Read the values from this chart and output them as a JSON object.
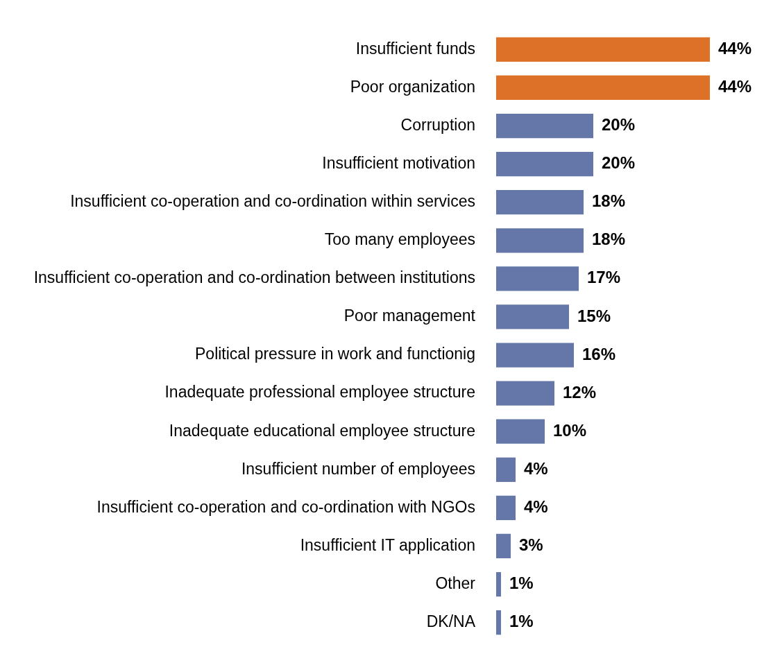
{
  "chart_data": {
    "type": "bar",
    "orientation": "horizontal",
    "tick_labels": "y",
    "categories": [
      "Insufficient funds",
      "Poor organization",
      "Corruption",
      "Insufficient motivation",
      "Insufficient co-operation and co-ordination within services",
      "Too many employees",
      "Insufficient co-operation and co-ordination between institutions",
      "Poor management",
      "Political pressure in work and functionig",
      "Inadequate professional employee structure",
      "Inadequate educational employee structure",
      "Insufficient number of employees",
      "Insufficient co-operation and co-ordination with NGOs",
      "Insufficient IT application",
      "Other",
      "DK/NA"
    ],
    "values": [
      44,
      44,
      20,
      20,
      18,
      18,
      17,
      15,
      16,
      12,
      10,
      4,
      4,
      3,
      1,
      1
    ],
    "value_labels": [
      "44%",
      "44%",
      "20%",
      "20%",
      "18%",
      "18%",
      "17%",
      "15%",
      "16%",
      "12%",
      "10%",
      "4%",
      "4%",
      "3%",
      "1%",
      "1%"
    ],
    "colors": [
      "#dd7128",
      "#dd7128",
      "#6577a8",
      "#6577a8",
      "#6577a8",
      "#6577a8",
      "#6577a8",
      "#6577a8",
      "#6577a8",
      "#6577a8",
      "#6577a8",
      "#6577a8",
      "#6577a8",
      "#6577a8",
      "#6577a8",
      "#6577a8"
    ],
    "legend": false
  }
}
